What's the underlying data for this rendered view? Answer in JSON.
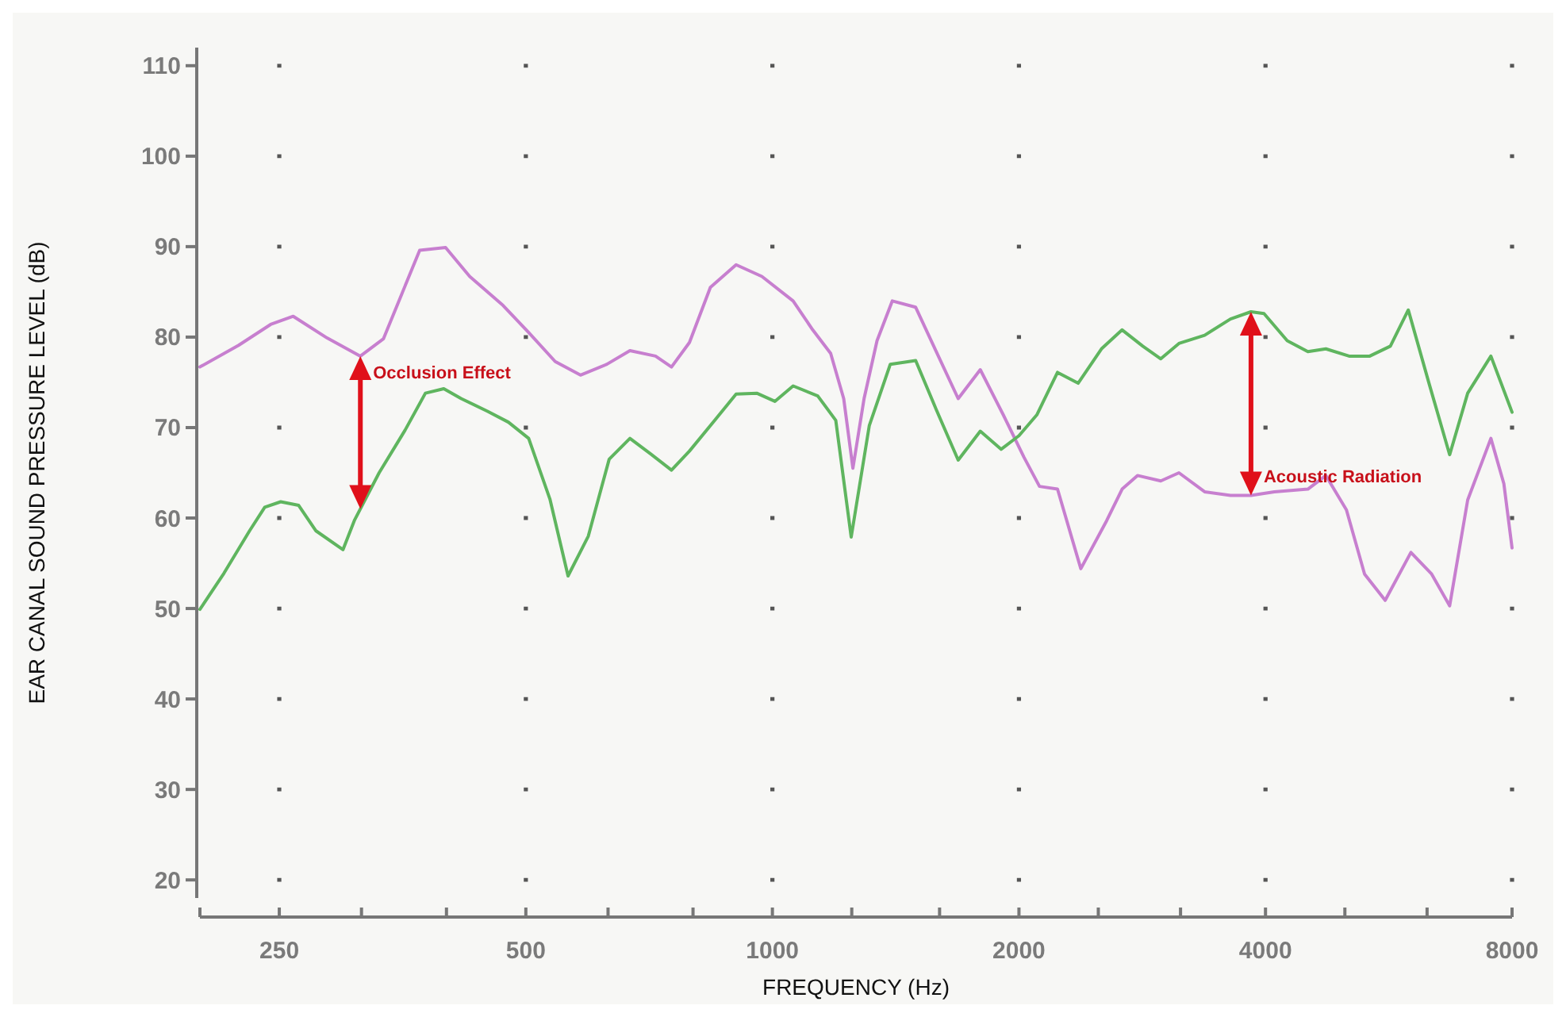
{
  "chart_data": {
    "type": "line",
    "xlabel": "FREQUENCY (Hz)",
    "ylabel": "EAR CANAL SOUND PRESSURE LEVEL (dB)",
    "log": "x",
    "xlim": [
      200,
      8000
    ],
    "ylim": [
      18,
      112
    ],
    "xticks": [
      {
        "value": 200,
        "label": null
      },
      250,
      {
        "value": 315,
        "label": null
      },
      {
        "value": 400,
        "label": null
      },
      500,
      {
        "value": 630,
        "label": null
      },
      {
        "value": 800,
        "label": null
      },
      1000,
      {
        "value": 1250,
        "label": null
      },
      {
        "value": 1600,
        "label": null
      },
      2000,
      {
        "value": 2500,
        "label": null
      },
      {
        "value": 3150,
        "label": null
      },
      4000,
      {
        "value": 5000,
        "label": null
      },
      {
        "value": 6300,
        "label": null
      },
      8000
    ],
    "yticks": [
      20,
      30,
      40,
      50,
      60,
      70,
      80,
      90,
      100,
      110
    ],
    "grid": true,
    "marker": "none",
    "line_style": "solid",
    "series": [
      {
        "color": "#c77fcf",
        "x": [
          200,
          223,
          244,
          260,
          286,
          314,
          335,
          371,
          399,
          427,
          469,
          504,
          543,
          583,
          628,
          670,
          720,
          753,
          792,
          840,
          903,
          971,
          1060,
          1120,
          1178,
          1222,
          1254,
          1294,
          1342,
          1401,
          1496,
          1585,
          1686,
          1794,
          1914,
          2029,
          2119,
          2229,
          2380,
          2559,
          2673,
          2791,
          2980,
          3136,
          3371,
          3625,
          3840,
          4100,
          4506,
          4740,
          5022,
          5285,
          5600,
          6020,
          6382,
          6713,
          7062,
          7538,
          7818,
          8000
        ],
        "values": [
          76.7,
          79.1,
          81.4,
          82.3,
          79.9,
          77.9,
          79.8,
          89.6,
          89.9,
          86.7,
          83.5,
          80.5,
          77.3,
          75.8,
          77.0,
          78.5,
          77.9,
          76.7,
          79.4,
          85.5,
          88.0,
          86.7,
          84.0,
          80.8,
          78.2,
          73.2,
          65.5,
          73.2,
          79.6,
          84.0,
          83.3,
          78.4,
          73.2,
          76.4,
          71.4,
          66.7,
          63.5,
          63.2,
          54.4,
          59.7,
          63.2,
          64.7,
          64.1,
          65.0,
          62.9,
          62.5,
          62.5,
          62.9,
          63.2,
          64.7,
          60.9,
          53.8,
          50.9,
          56.2,
          53.8,
          50.3,
          62.0,
          68.8,
          63.8,
          56.7
        ]
      },
      {
        "color": "#5fb55f",
        "x": [
          200,
          214,
          230,
          240,
          251,
          264,
          277,
          299,
          309,
          331,
          356,
          377,
          397,
          417,
          449,
          476,
          504,
          535,
          563,
          596,
          632,
          670,
          710,
          753,
          792,
          852,
          903,
          957,
          1007,
          1060,
          1136,
          1195,
          1248,
          1313,
          1393,
          1496,
          1585,
          1686,
          1794,
          1902,
          2000,
          2103,
          2229,
          2362,
          2522,
          2673,
          2833,
          2980,
          3136,
          3371,
          3625,
          3840,
          3983,
          4252,
          4506,
          4740,
          5060,
          5362,
          5682,
          5976,
          6334,
          6713,
          7062,
          7538,
          8000
        ],
        "values": [
          49.9,
          53.9,
          58.6,
          61.2,
          61.8,
          61.4,
          58.6,
          56.5,
          59.8,
          65.0,
          69.7,
          73.8,
          74.3,
          73.2,
          71.8,
          70.6,
          68.8,
          62.1,
          53.6,
          58.0,
          66.5,
          68.8,
          67.1,
          65.3,
          67.4,
          70.9,
          73.7,
          73.8,
          72.9,
          74.6,
          73.5,
          70.8,
          57.9,
          70.2,
          77.0,
          77.4,
          72.0,
          66.4,
          69.6,
          67.6,
          69.1,
          71.4,
          76.1,
          74.9,
          78.7,
          80.8,
          79.0,
          77.6,
          79.3,
          80.2,
          82.0,
          82.8,
          82.6,
          79.6,
          78.4,
          78.7,
          77.9,
          77.9,
          79.0,
          83.0,
          74.9,
          67.0,
          73.8,
          77.9,
          71.7
        ]
      }
    ],
    "annotations": [
      {
        "text": "Occlusion Effect",
        "x": 314,
        "y": 77.9
      },
      {
        "text": "Acoustic Radiation",
        "x": 3840,
        "y": 62.5
      }
    ]
  }
}
